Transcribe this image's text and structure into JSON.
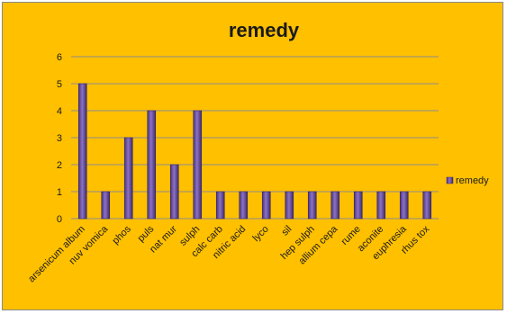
{
  "chart_data": {
    "type": "bar",
    "title": "remedy",
    "xlabel": "",
    "ylabel": "",
    "ylim": [
      0,
      6
    ],
    "yticks": [
      0,
      1,
      2,
      3,
      4,
      5,
      6
    ],
    "grid": true,
    "legend_position": "right",
    "categories": [
      "arsenicum album",
      "nuv vomica",
      "phos",
      "puls",
      "nat mur",
      "sulph",
      "calc carb",
      "nitric acid",
      "lyco",
      "sil",
      "hep sulph",
      "allium cepa",
      "rume",
      "aconite",
      "euphresia",
      "rhus tox"
    ],
    "series": [
      {
        "name": "remedy",
        "values": [
          5,
          1,
          3,
          4,
          2,
          4,
          1,
          1,
          1,
          1,
          1,
          1,
          1,
          1,
          1,
          1
        ],
        "color": "#6a4fa3"
      }
    ],
    "background_color": "#ffc000"
  }
}
